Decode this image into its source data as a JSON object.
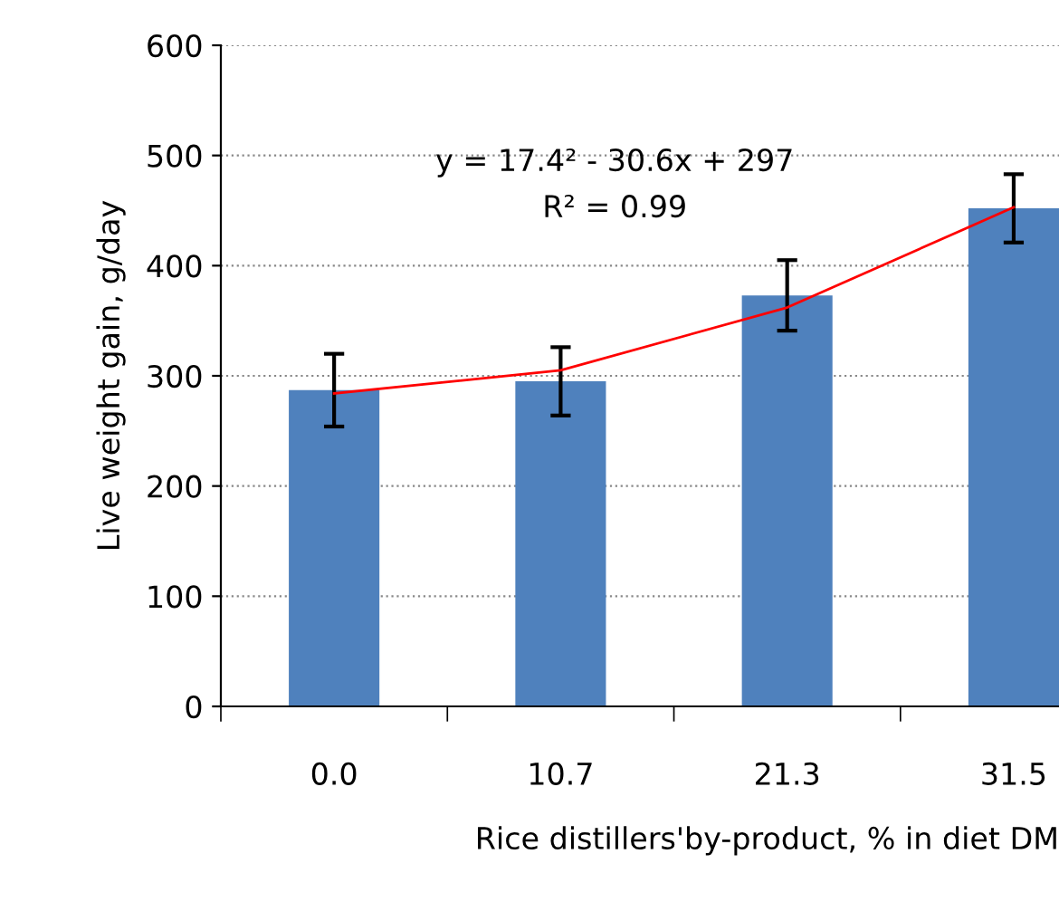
{
  "chart_data": {
    "type": "bar",
    "xlabel": "Rice distillers'by-product, % in diet DM",
    "ylabel": "Live weight gain, g/day",
    "categories": [
      "0.0",
      "10.7",
      "21.3",
      "31.5"
    ],
    "ylim": [
      0,
      600
    ],
    "yticks": [
      0,
      100,
      200,
      300,
      400,
      500,
      600
    ],
    "grid": "y",
    "series": [
      {
        "color": "#4f81bd",
        "values": [
          287,
          295,
          373,
          452
        ],
        "errors": [
          33,
          31,
          32,
          31
        ]
      },
      {
        "type": "line",
        "color": "#ff0000",
        "values": [
          284,
          305,
          362,
          453
        ]
      }
    ],
    "annotations": [
      "y = 17.4² - 30.6x + 297",
      "R² = 0.99"
    ]
  }
}
